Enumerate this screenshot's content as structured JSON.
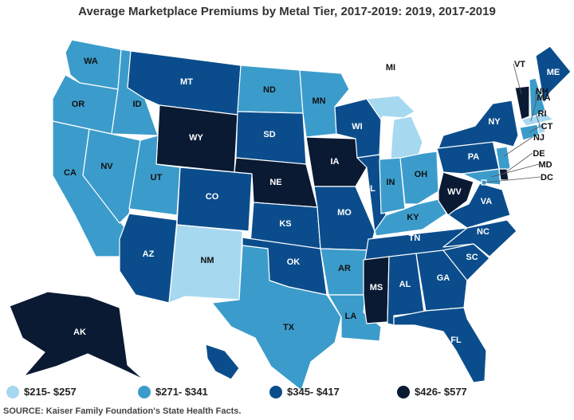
{
  "title": "Average Marketplace Premiums by Metal Tier, 2017-2019: 2019, 2017-2019",
  "source": "SOURCE: Kaiser Family Foundation's State Health Facts.",
  "legend": [
    {
      "label": "$215- $257",
      "color": "#a6d8f0"
    },
    {
      "label": "$271- $341",
      "color": "#3b9ccb"
    },
    {
      "label": "$345- $417",
      "color": "#0b4d8c"
    },
    {
      "label": "$426- $577",
      "color": "#0b1a33"
    }
  ],
  "states": {
    "WA": 1,
    "OR": 1,
    "CA": 1,
    "NV": 1,
    "ID": 1,
    "UT": 1,
    "AZ": 2,
    "MT": 2,
    "WY": 3,
    "CO": 2,
    "NM": 0,
    "ND": 1,
    "SD": 2,
    "NE": 3,
    "KS": 2,
    "OK": 2,
    "TX": 1,
    "MN": 1,
    "IA": 3,
    "MO": 2,
    "AR": 1,
    "LA": 1,
    "WI": 2,
    "IL": 2,
    "MI": 0,
    "IN": 1,
    "OH": 1,
    "KY": 1,
    "TN": 2,
    "MS": 3,
    "AL": 2,
    "GA": 2,
    "FL": 2,
    "SC": 2,
    "NC": 2,
    "VA": 2,
    "WV": 3,
    "PA": 2,
    "NY": 2,
    "VT": 3,
    "NH": 1,
    "ME": 2,
    "MA": 0,
    "RI": 0,
    "CT": 1,
    "NJ": 1,
    "DE": 3,
    "MD": 1,
    "DC": 1,
    "AK": 3,
    "HI": 2
  }
}
